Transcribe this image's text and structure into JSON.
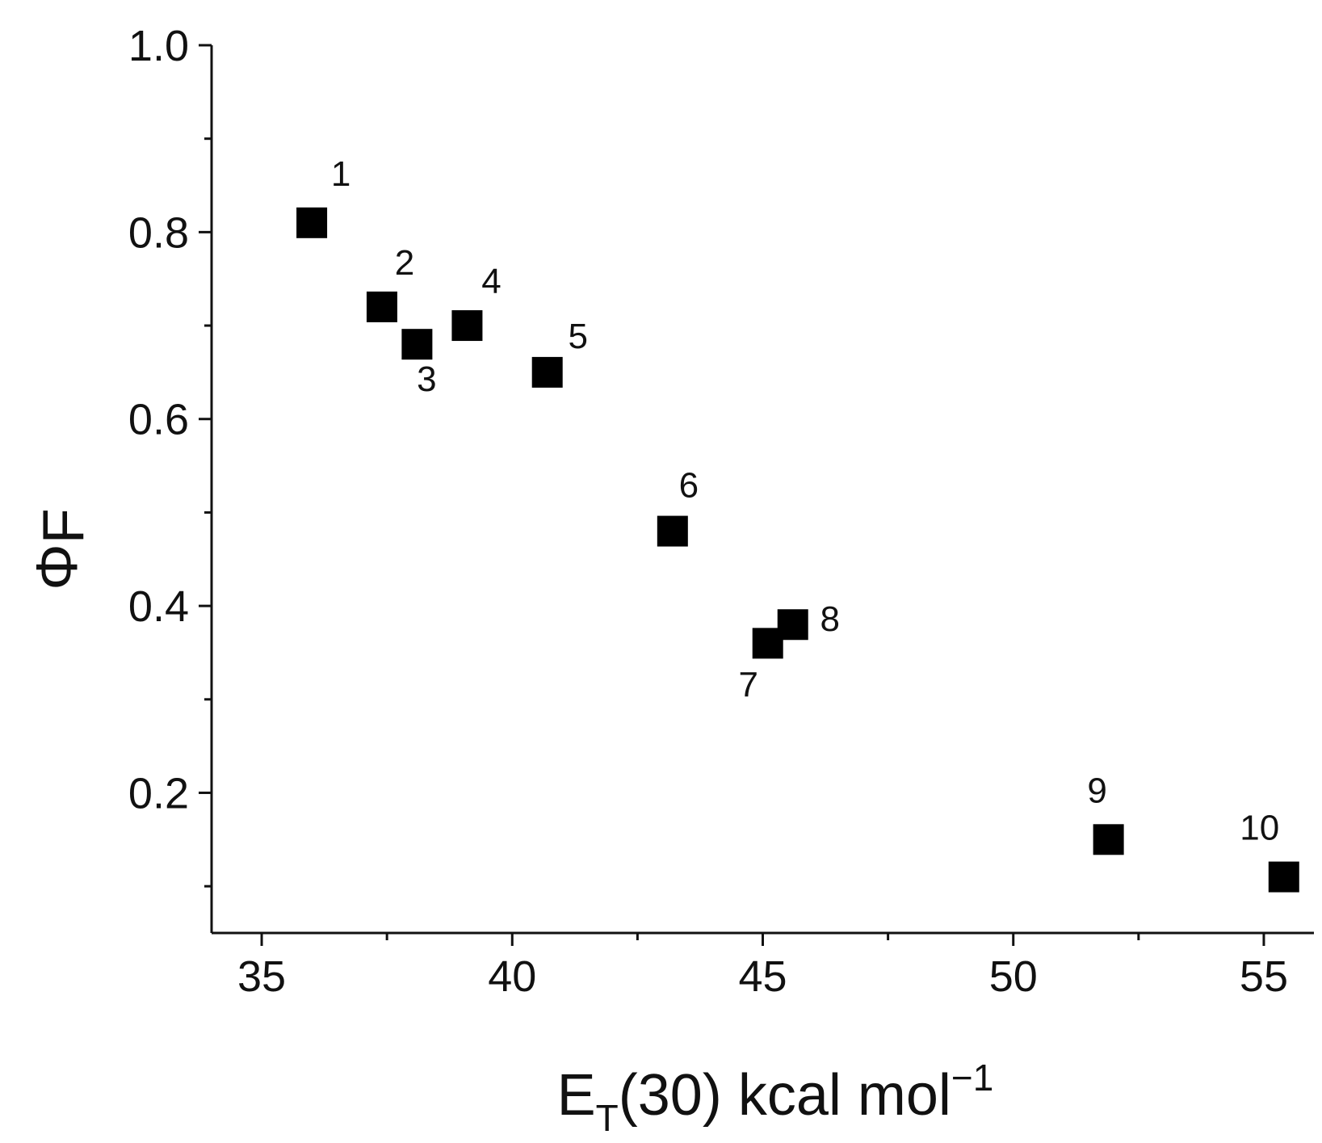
{
  "chart_data": {
    "type": "scatter",
    "xlabel": {
      "main": "E",
      "sub": "T",
      "rest": "(30) kcal mol",
      "sup": "−1"
    },
    "ylabel": {
      "main": "Φ",
      "sub": "F"
    },
    "xlim": [
      34,
      56
    ],
    "ylim": [
      0.05,
      1.0
    ],
    "xticks": [
      "35",
      "40",
      "45",
      "50",
      "55"
    ],
    "yticks": [
      "0.2",
      "0.4",
      "0.6",
      "0.8",
      "1.0"
    ],
    "grid": false,
    "marker": "square",
    "marker_color": "#000000",
    "points": [
      {
        "label": "1",
        "x": 36.0,
        "y": 0.81
      },
      {
        "label": "2",
        "x": 37.4,
        "y": 0.72
      },
      {
        "label": "3",
        "x": 38.1,
        "y": 0.68
      },
      {
        "label": "4",
        "x": 39.1,
        "y": 0.7
      },
      {
        "label": "5",
        "x": 40.7,
        "y": 0.65
      },
      {
        "label": "6",
        "x": 43.2,
        "y": 0.48
      },
      {
        "label": "7",
        "x": 45.1,
        "y": 0.36
      },
      {
        "label": "8",
        "x": 45.6,
        "y": 0.38
      },
      {
        "label": "9",
        "x": 51.9,
        "y": 0.15
      },
      {
        "label": "10",
        "x": 55.4,
        "y": 0.11
      }
    ]
  }
}
